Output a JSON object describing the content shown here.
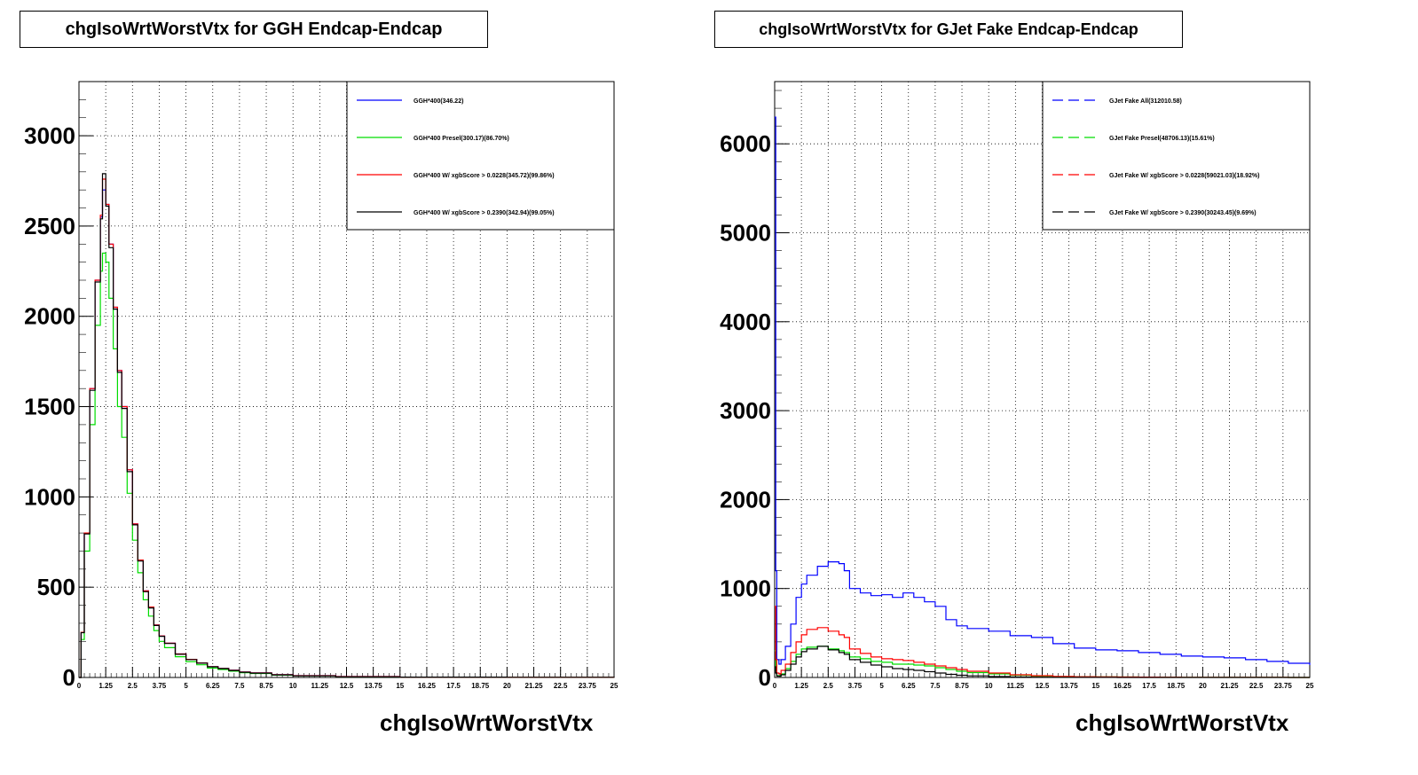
{
  "chart_data": [
    {
      "type": "line",
      "title": "chgIsoWrtWorstVtx for GGH Endcap-Endcap",
      "xlabel": "chgIsoWrtWorstVtx",
      "ylabel": "",
      "xlim": [
        0,
        25
      ],
      "ylim": [
        0,
        3300
      ],
      "grid": true,
      "legend_position": "top-right",
      "y_ticks": [
        "0",
        "500",
        "1000",
        "1500",
        "2000",
        "2500",
        "3000"
      ],
      "x_ticks": [
        "0",
        "1.25",
        "2.5",
        "3.75",
        "5",
        "6.25",
        "7.5",
        "8.75",
        "10",
        "11.25",
        "12.5",
        "13.75",
        "15",
        "16.25",
        "17.5",
        "18.75",
        "20",
        "21.25",
        "22.5",
        "23.75",
        "25"
      ],
      "x": [
        0,
        0.1,
        0.25,
        0.5,
        0.75,
        1.0,
        1.1,
        1.25,
        1.4,
        1.6,
        1.8,
        2.0,
        2.25,
        2.5,
        2.75,
        3.0,
        3.25,
        3.5,
        3.75,
        4.0,
        4.5,
        5.0,
        5.5,
        6.0,
        6.5,
        7.0,
        7.5,
        8.0,
        9.0,
        10.0,
        12.0,
        15.0,
        20.0,
        25.0
      ],
      "series": [
        {
          "name": "GGH*400(346.22)",
          "color": "#0000ff",
          "dashed": false,
          "values": [
            0,
            250,
            800,
            1600,
            2200,
            2550,
            2700,
            2620,
            2400,
            2050,
            1700,
            1500,
            1150,
            850,
            650,
            480,
            390,
            290,
            230,
            190,
            130,
            100,
            80,
            60,
            50,
            40,
            30,
            25,
            15,
            10,
            5,
            2,
            1,
            0
          ]
        },
        {
          "name": "GGH*400 Presel(300.17)(86.70%)",
          "color": "#00dd00",
          "dashed": false,
          "values": [
            0,
            210,
            700,
            1400,
            1950,
            2250,
            2350,
            2300,
            2100,
            1820,
            1500,
            1330,
            1020,
            760,
            580,
            430,
            340,
            260,
            200,
            165,
            115,
            88,
            70,
            52,
            44,
            35,
            26,
            22,
            13,
            9,
            4,
            2,
            1,
            0
          ]
        },
        {
          "name": "GGH*400 W/ xgbScore > 0.0228(345.72)(99.86%)",
          "color": "#ff0000",
          "dashed": false,
          "values": [
            0,
            250,
            800,
            1600,
            2200,
            2560,
            2760,
            2620,
            2400,
            2050,
            1700,
            1500,
            1150,
            850,
            650,
            480,
            390,
            290,
            230,
            190,
            130,
            100,
            80,
            60,
            50,
            40,
            30,
            25,
            15,
            10,
            5,
            2,
            1,
            0
          ]
        },
        {
          "name": "GGH*400 W/ xgbScore > 0.2390(342.94)(99.05%)",
          "color": "#000000",
          "dashed": false,
          "values": [
            0,
            248,
            795,
            1590,
            2190,
            2540,
            2790,
            2610,
            2380,
            2040,
            1690,
            1490,
            1140,
            845,
            645,
            475,
            385,
            288,
            228,
            188,
            128,
            99,
            79,
            59,
            49,
            39,
            29,
            24,
            14,
            9,
            4,
            2,
            1,
            0
          ]
        }
      ]
    },
    {
      "type": "line",
      "title": "chgIsoWrtWorstVtx for GJet Fake Endcap-Endcap",
      "xlabel": "chgIsoWrtWorstVtx",
      "ylabel": "",
      "xlim": [
        0,
        25
      ],
      "ylim": [
        0,
        6700
      ],
      "grid": true,
      "legend_position": "top-right",
      "y_ticks": [
        "0",
        "1000",
        "2000",
        "3000",
        "4000",
        "5000",
        "6000"
      ],
      "x_ticks": [
        "0",
        "1.25",
        "2.5",
        "3.75",
        "5",
        "6.25",
        "7.5",
        "8.75",
        "10",
        "11.25",
        "12.5",
        "13.75",
        "15",
        "16.25",
        "17.5",
        "18.75",
        "20",
        "21.25",
        "22.5",
        "23.75",
        "25"
      ],
      "x": [
        0,
        0.05,
        0.1,
        0.2,
        0.3,
        0.5,
        0.75,
        1.0,
        1.25,
        1.5,
        2.0,
        2.5,
        3.0,
        3.25,
        3.5,
        4.0,
        4.5,
        5.0,
        5.5,
        6.0,
        6.5,
        7.0,
        7.5,
        8.0,
        8.5,
        9.0,
        10.0,
        11.0,
        12.0,
        13.0,
        14.0,
        15.0,
        16.0,
        17.0,
        18.0,
        19.0,
        20.0,
        21.0,
        22.0,
        23.0,
        24.0,
        25.0
      ],
      "series": [
        {
          "name": "GJet Fake All(312010.58)",
          "color": "#0000ff",
          "dashed": true,
          "values": [
            6300,
            1200,
            200,
            150,
            200,
            350,
            600,
            900,
            1050,
            1150,
            1250,
            1300,
            1280,
            1200,
            1000,
            950,
            920,
            930,
            900,
            950,
            900,
            850,
            800,
            650,
            580,
            550,
            520,
            470,
            450,
            380,
            330,
            310,
            300,
            280,
            260,
            240,
            230,
            220,
            200,
            180,
            160,
            140
          ]
        },
        {
          "name": "GJet Fake Presel(48706.13)(15.61%)",
          "color": "#00dd00",
          "dashed": true,
          "values": [
            300,
            80,
            20,
            20,
            40,
            100,
            180,
            260,
            320,
            340,
            350,
            320,
            300,
            280,
            230,
            210,
            180,
            170,
            150,
            150,
            140,
            130,
            110,
            90,
            70,
            55,
            40,
            25,
            15,
            10,
            8,
            6,
            5,
            4,
            3,
            2,
            2,
            1,
            1,
            1,
            0,
            0
          ]
        },
        {
          "name": "GJet Fake W/ xgbScore > 0.0228(59021.03)(18.92%)",
          "color": "#ff0000",
          "dashed": true,
          "values": [
            800,
            200,
            50,
            40,
            80,
            150,
            280,
            400,
            480,
            540,
            560,
            520,
            480,
            450,
            320,
            270,
            230,
            210,
            200,
            190,
            170,
            150,
            130,
            110,
            90,
            70,
            50,
            30,
            20,
            12,
            8,
            6,
            5,
            4,
            3,
            2,
            2,
            1,
            1,
            1,
            0,
            0
          ]
        },
        {
          "name": "GJet Fake W/ xgbScore > 0.2390(30243.45)(9.69%)",
          "color": "#000000",
          "dashed": true,
          "values": [
            120,
            50,
            15,
            15,
            30,
            80,
            150,
            230,
            290,
            320,
            350,
            310,
            280,
            260,
            200,
            170,
            140,
            120,
            100,
            90,
            80,
            65,
            50,
            35,
            25,
            18,
            10,
            5,
            3,
            2,
            1,
            1,
            0,
            0,
            0,
            0,
            0,
            0,
            0,
            0,
            0,
            0
          ]
        }
      ]
    }
  ]
}
